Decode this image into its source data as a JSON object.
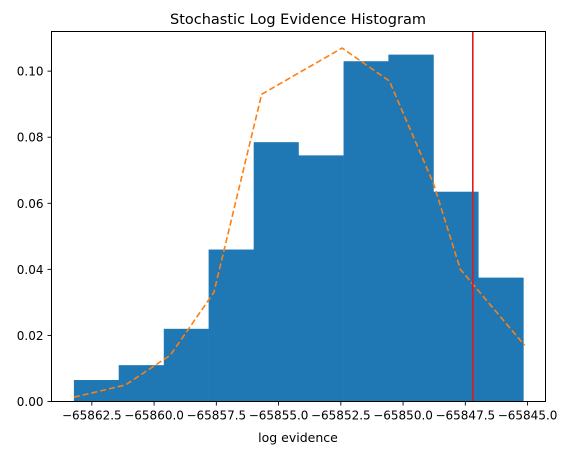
{
  "chart_data": {
    "type": "bar",
    "title": "Stochastic Log Evidence Histogram",
    "xlabel": "log evidence",
    "ylabel": "",
    "xlim": [
      -65864.12,
      -65844.28
    ],
    "ylim": [
      0,
      0.112
    ],
    "grid": false,
    "legend": "none",
    "x_ticks": [
      -65862.5,
      -65860.0,
      -65857.5,
      -65855.0,
      -65852.5,
      -65850.0,
      -65847.5,
      -65845.0
    ],
    "x_tick_labels": [
      "−65862.5",
      "−65860.0",
      "−65857.5",
      "−65855.0",
      "−65852.5",
      "−65850.0",
      "−65847.5",
      "−65845.0"
    ],
    "y_ticks": [
      0.0,
      0.02,
      0.04,
      0.06,
      0.08,
      0.1
    ],
    "y_tick_labels": [
      "0.00",
      "0.02",
      "0.04",
      "0.06",
      "0.08",
      "0.10"
    ],
    "bin_edges": [
      -65863.22,
      -65861.42,
      -65859.61,
      -65857.81,
      -65856.0,
      -65854.2,
      -65852.39,
      -65850.59,
      -65848.78,
      -65846.98,
      -65845.17
    ],
    "values": [
      0.0065,
      0.011,
      0.022,
      0.046,
      0.0785,
      0.0745,
      0.103,
      0.105,
      0.0635,
      0.0375
    ],
    "bar_color": "#1f77b4",
    "density_curve": {
      "style": "dashed",
      "color": "#ff7f0e",
      "x": [
        -65863.22,
        -65861.15,
        -65859.35,
        -65857.6,
        -65855.68,
        -65852.45,
        -65850.55,
        -65848.78,
        -65847.7,
        -65845.12
      ],
      "y": [
        0.0013,
        0.005,
        0.014,
        0.033,
        0.093,
        0.107,
        0.097,
        0.066,
        0.04,
        0.017
      ]
    },
    "reference_line": {
      "x": -65847.2,
      "color": "#e31a1c"
    }
  }
}
